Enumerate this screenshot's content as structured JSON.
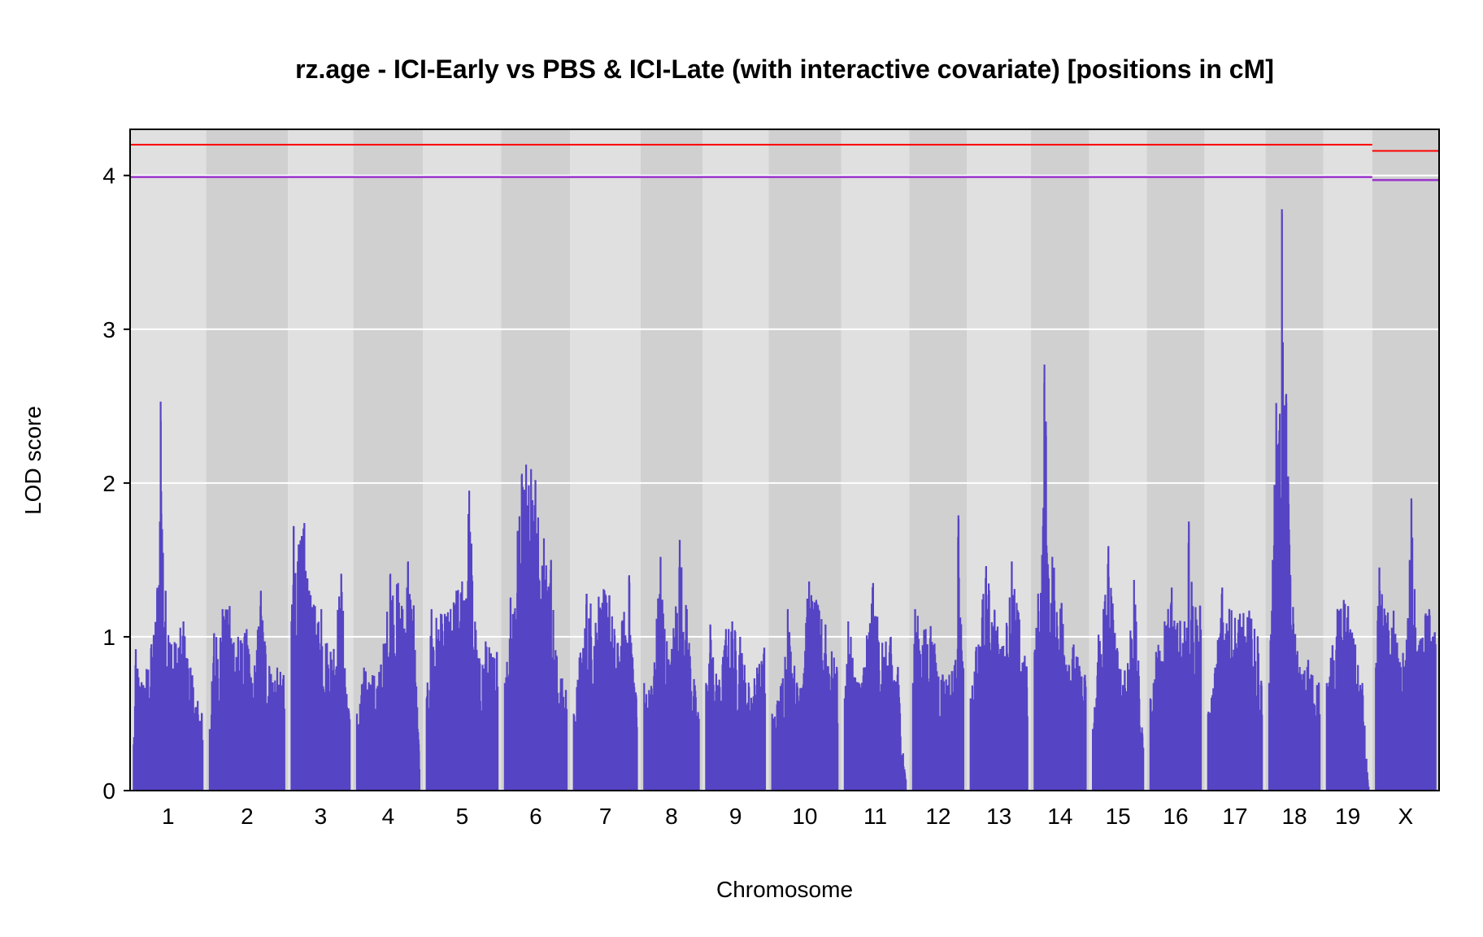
{
  "chart_data": {
    "type": "line",
    "title": "rz.age - ICI-Early vs PBS & ICI-Late (with interactive covariate) [positions in cM]",
    "xlabel": "Chromosome",
    "ylabel": "LOD score",
    "ylim": [
      0,
      4.3
    ],
    "yticks": [
      0,
      1,
      2,
      3,
      4
    ],
    "grid": true,
    "colors": {
      "lod": "#5544c4",
      "threshold_high": "#ff0000",
      "threshold_low": "#9933cc",
      "panel_light": "#e0e0e0",
      "panel_dark": "#d0d0d0"
    },
    "chromosomes": [
      {
        "name": "1",
        "length": 97,
        "peaks": [
          [
            0,
            0.3
          ],
          [
            3,
            0.92
          ],
          [
            11,
            0.7
          ],
          [
            25,
            0.95
          ],
          [
            33,
            1.3
          ],
          [
            37,
            1.75
          ],
          [
            38,
            2.53
          ],
          [
            39,
            1.8
          ],
          [
            40,
            1.7
          ],
          [
            45,
            1.3
          ],
          [
            53,
            0.95
          ],
          [
            70,
            1.1
          ],
          [
            80,
            0.8
          ],
          [
            96,
            0.5
          ]
        ]
      },
      {
        "name": "2",
        "length": 105,
        "peaks": [
          [
            0,
            0.4
          ],
          [
            6,
            1.02
          ],
          [
            18,
            1.18
          ],
          [
            28,
            1.2
          ],
          [
            40,
            1.0
          ],
          [
            52,
            1.05
          ],
          [
            60,
            0.7
          ],
          [
            72,
            1.3
          ],
          [
            84,
            0.8
          ],
          [
            95,
            0.8
          ],
          [
            104,
            0.75
          ]
        ]
      },
      {
        "name": "3",
        "length": 82,
        "peaks": [
          [
            0,
            1.1
          ],
          [
            3,
            1.72
          ],
          [
            10,
            1.6
          ],
          [
            18,
            1.74
          ],
          [
            25,
            1.3
          ],
          [
            33,
            1.2
          ],
          [
            42,
            1.18
          ],
          [
            55,
            0.9
          ],
          [
            70,
            1.41
          ],
          [
            81,
            0.5
          ]
        ]
      },
      {
        "name": "4",
        "length": 88,
        "peaks": [
          [
            0,
            0.5
          ],
          [
            10,
            0.8
          ],
          [
            22,
            0.75
          ],
          [
            34,
            0.82
          ],
          [
            47,
            1.41
          ],
          [
            58,
            1.35
          ],
          [
            63,
            1.2
          ],
          [
            72,
            1.49
          ],
          [
            80,
            1.2
          ],
          [
            87,
            0.3
          ]
        ]
      },
      {
        "name": "5",
        "length": 100,
        "peaks": [
          [
            0,
            0.6
          ],
          [
            7,
            1.18
          ],
          [
            20,
            1.15
          ],
          [
            30,
            1.16
          ],
          [
            42,
            1.3
          ],
          [
            50,
            1.36
          ],
          [
            60,
            1.95
          ],
          [
            72,
            0.85
          ],
          [
            83,
            0.97
          ],
          [
            99,
            0.9
          ]
        ]
      },
      {
        "name": "6",
        "length": 87,
        "peaks": [
          [
            0,
            0.7
          ],
          [
            8,
            1.25
          ],
          [
            18,
            1.68
          ],
          [
            24,
            2.06
          ],
          [
            30,
            2.12
          ],
          [
            37,
            2.09
          ],
          [
            43,
            2.02
          ],
          [
            55,
            1.64
          ],
          [
            65,
            1.5
          ],
          [
            73,
            0.87
          ],
          [
            86,
            0.65
          ]
        ]
      },
      {
        "name": "7",
        "length": 89,
        "peaks": [
          [
            0,
            0.5
          ],
          [
            8,
            0.86
          ],
          [
            18,
            1.28
          ],
          [
            35,
            1.26
          ],
          [
            42,
            1.31
          ],
          [
            50,
            1.27
          ],
          [
            62,
            0.96
          ],
          [
            78,
            1.4
          ],
          [
            88,
            0.6
          ]
        ]
      },
      {
        "name": "8",
        "length": 77,
        "peaks": [
          [
            0,
            0.7
          ],
          [
            10,
            0.68
          ],
          [
            23,
            1.52
          ],
          [
            36,
            0.8
          ],
          [
            50,
            1.63
          ],
          [
            60,
            1.18
          ],
          [
            76,
            0.5
          ]
        ]
      },
      {
        "name": "9",
        "length": 83,
        "peaks": [
          [
            0,
            0.7
          ],
          [
            6,
            1.08
          ],
          [
            17,
            0.68
          ],
          [
            28,
            1.05
          ],
          [
            37,
            1.1
          ],
          [
            48,
            1.0
          ],
          [
            60,
            0.7
          ],
          [
            72,
            0.8
          ],
          [
            82,
            0.93
          ]
        ]
      },
      {
        "name": "10",
        "length": 92,
        "peaks": [
          [
            0,
            0.5
          ],
          [
            12,
            0.68
          ],
          [
            22,
            1.18
          ],
          [
            35,
            0.7
          ],
          [
            52,
            1.36
          ],
          [
            62,
            1.24
          ],
          [
            75,
            1.08
          ],
          [
            91,
            0.8
          ]
        ]
      },
      {
        "name": "11",
        "length": 86,
        "peaks": [
          [
            0,
            0.6
          ],
          [
            5,
            1.1
          ],
          [
            20,
            0.7
          ],
          [
            40,
            1.35
          ],
          [
            53,
            0.96
          ],
          [
            65,
            1.0
          ],
          [
            75,
            0.8
          ],
          [
            85,
            0.1
          ]
        ]
      },
      {
        "name": "12",
        "length": 71,
        "peaks": [
          [
            0,
            0.7
          ],
          [
            3,
            1.18
          ],
          [
            18,
            1.05
          ],
          [
            25,
            1.07
          ],
          [
            42,
            0.75
          ],
          [
            60,
            0.85
          ],
          [
            64,
            1.79
          ],
          [
            70,
            0.8
          ]
        ]
      },
      {
        "name": "13",
        "length": 80,
        "peaks": [
          [
            0,
            0.6
          ],
          [
            8,
            0.93
          ],
          [
            22,
            1.46
          ],
          [
            34,
            1.17
          ],
          [
            46,
            0.93
          ],
          [
            58,
            1.49
          ],
          [
            79,
            0.8
          ]
        ]
      },
      {
        "name": "14",
        "length": 72,
        "peaks": [
          [
            0,
            0.9
          ],
          [
            5,
            1.28
          ],
          [
            12,
            1.72
          ],
          [
            14,
            2.77
          ],
          [
            16,
            2.4
          ],
          [
            19,
            1.4
          ],
          [
            25,
            1.52
          ],
          [
            38,
            1.22
          ],
          [
            55,
            0.95
          ],
          [
            71,
            0.75
          ]
        ]
      },
      {
        "name": "15",
        "length": 71,
        "peaks": [
          [
            0,
            0.4
          ],
          [
            8,
            1.01
          ],
          [
            22,
            1.59
          ],
          [
            35,
            0.9
          ],
          [
            45,
            0.78
          ],
          [
            58,
            1.37
          ],
          [
            70,
            0.35
          ]
        ]
      },
      {
        "name": "16",
        "length": 71,
        "peaks": [
          [
            0,
            0.6
          ],
          [
            8,
            0.9
          ],
          [
            20,
            1.1
          ],
          [
            30,
            1.32
          ],
          [
            42,
            1.1
          ],
          [
            48,
            1.1
          ],
          [
            54,
            1.75
          ],
          [
            58,
            1.35
          ],
          [
            70,
            1.2
          ]
        ]
      },
      {
        "name": "17",
        "length": 76,
        "peaks": [
          [
            0,
            0.5
          ],
          [
            10,
            0.8
          ],
          [
            20,
            1.32
          ],
          [
            30,
            1.18
          ],
          [
            45,
            1.15
          ],
          [
            58,
            1.17
          ],
          [
            70,
            1.0
          ],
          [
            75,
            0.7
          ]
        ]
      },
      {
        "name": "18",
        "length": 71,
        "peaks": [
          [
            0,
            0.7
          ],
          [
            5,
            1.5
          ],
          [
            10,
            2.52
          ],
          [
            15,
            2.45
          ],
          [
            18,
            3.78
          ],
          [
            21,
            2.5
          ],
          [
            24,
            2.58
          ],
          [
            27,
            2.0
          ],
          [
            30,
            1.38
          ],
          [
            45,
            0.75
          ],
          [
            55,
            0.85
          ],
          [
            70,
            0.7
          ]
        ]
      },
      {
        "name": "19",
        "length": 59,
        "peaks": [
          [
            0,
            0.7
          ],
          [
            8,
            0.94
          ],
          [
            15,
            1.18
          ],
          [
            24,
            1.24
          ],
          [
            30,
            1.2
          ],
          [
            40,
            0.95
          ],
          [
            50,
            0.7
          ],
          [
            58,
            0.05
          ]
        ]
      },
      {
        "name": "X",
        "length": 84,
        "peaks": [
          [
            0,
            0.8
          ],
          [
            5,
            1.45
          ],
          [
            12,
            1.18
          ],
          [
            25,
            1.17
          ],
          [
            35,
            0.8
          ],
          [
            45,
            1.1
          ],
          [
            50,
            1.9
          ],
          [
            58,
            0.9
          ],
          [
            70,
            1.15
          ],
          [
            75,
            1.18
          ],
          [
            80,
            1.0
          ],
          [
            83,
            1.03
          ]
        ]
      }
    ],
    "thresholds": {
      "autosome": [
        4.2,
        3.99
      ],
      "x": [
        4.16,
        3.97
      ]
    }
  }
}
